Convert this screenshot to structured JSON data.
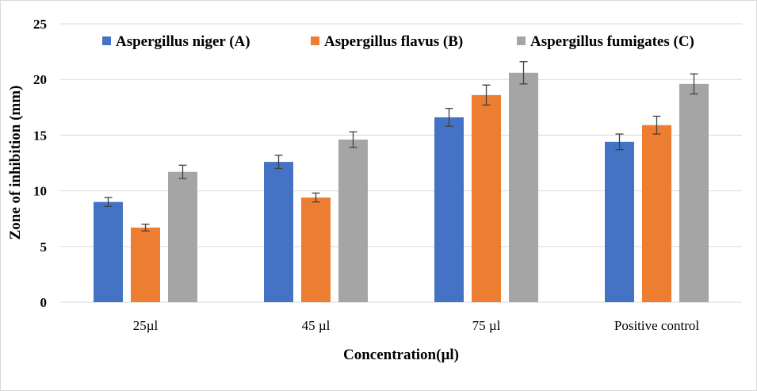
{
  "chart_data": {
    "type": "bar",
    "title": "",
    "xlabel": "Concentration(µl)",
    "ylabel": "Zone of inhibition (mm)",
    "ylim": [
      0,
      25
    ],
    "yticks": [
      0,
      5,
      10,
      15,
      20,
      25
    ],
    "grid": true,
    "legend_position": "top",
    "categories": [
      "25µl",
      "45 µl",
      "75 µl",
      "Positive control"
    ],
    "series": [
      {
        "name": "Aspergillus niger (A)",
        "color": "#4472c4",
        "values": [
          9.0,
          12.6,
          16.6,
          14.4
        ],
        "errors": [
          0.4,
          0.6,
          0.8,
          0.7
        ]
      },
      {
        "name": "Aspergillus flavus (B)",
        "color": "#ed7d31",
        "values": [
          6.7,
          9.4,
          18.6,
          15.9
        ],
        "errors": [
          0.3,
          0.4,
          0.9,
          0.8
        ]
      },
      {
        "name": "Aspergillus fumigates (C)",
        "color": "#a5a5a5",
        "values": [
          11.7,
          14.6,
          20.6,
          19.6
        ],
        "errors": [
          0.6,
          0.7,
          1.0,
          0.9
        ]
      }
    ]
  }
}
